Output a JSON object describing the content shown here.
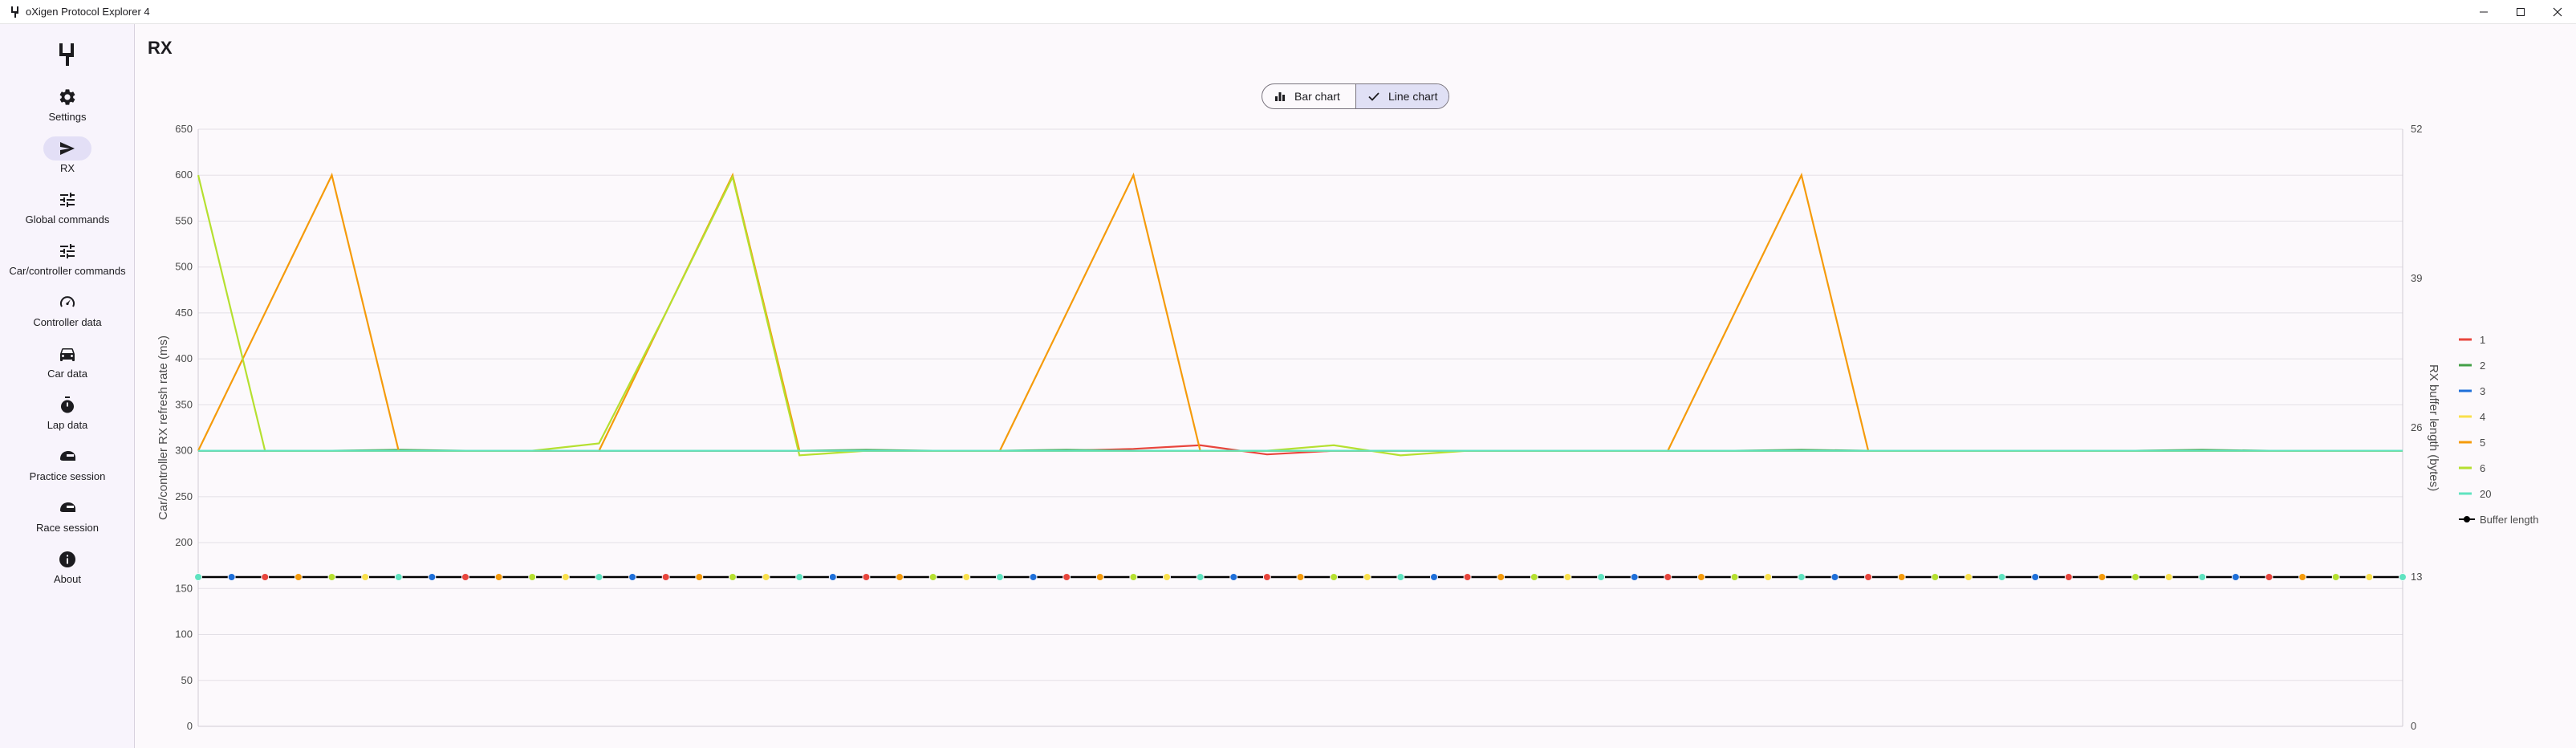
{
  "window": {
    "title": "oXigen Protocol Explorer 4"
  },
  "nav": {
    "items": [
      {
        "label": "Settings",
        "icon": "gear-icon",
        "active": false
      },
      {
        "label": "RX",
        "icon": "send-icon",
        "active": true
      },
      {
        "label": "Global commands",
        "icon": "tune-icon",
        "active": false
      },
      {
        "label": "Car/controller commands",
        "icon": "tune-icon",
        "active": false
      },
      {
        "label": "Controller data",
        "icon": "speedometer-icon",
        "active": false
      },
      {
        "label": "Car data",
        "icon": "car-icon",
        "active": false
      },
      {
        "label": "Lap data",
        "icon": "stopwatch-icon",
        "active": false
      },
      {
        "label": "Practice session",
        "icon": "helmet-icon",
        "active": false
      },
      {
        "label": "Race session",
        "icon": "helmet-icon",
        "active": false
      },
      {
        "label": "About",
        "icon": "info-icon",
        "active": false
      }
    ]
  },
  "page": {
    "title": "RX"
  },
  "toggle": {
    "bar_label": "Bar chart",
    "line_label": "Line chart",
    "selected": "Line chart"
  },
  "chart_data": {
    "type": "line",
    "ylabel": "Car/controller RX refresh rate (ms)",
    "y2label": "RX buffer length (bytes)",
    "ylim": [
      0,
      650
    ],
    "y_ticks": [
      0,
      50,
      100,
      150,
      200,
      250,
      300,
      350,
      400,
      450,
      500,
      550,
      600,
      650
    ],
    "y2lim": [
      0,
      52
    ],
    "y2_ticks": [
      0,
      13,
      26,
      39,
      52
    ],
    "grid": true,
    "legend_position": "right",
    "x": [
      0,
      1,
      2,
      3,
      4,
      5,
      6,
      7,
      8,
      9,
      10,
      11,
      12,
      13,
      14,
      15,
      16,
      17,
      18,
      19,
      20,
      21,
      22,
      23,
      24,
      25,
      26,
      27,
      28,
      29,
      30,
      31,
      32,
      33
    ],
    "series": [
      {
        "name": "1",
        "color": "#e8453c",
        "values": [
          300,
          300,
          300,
          300,
          300,
          300,
          300,
          300,
          300,
          300,
          300,
          300,
          300,
          300,
          302,
          306,
          296,
          300,
          300,
          300,
          300,
          300,
          300,
          300,
          300,
          300,
          300,
          300,
          300,
          300,
          300,
          300,
          300,
          300
        ]
      },
      {
        "name": "2",
        "color": "#43a047",
        "values": [
          300,
          300,
          300,
          301,
          300,
          300,
          300,
          300,
          300,
          300,
          301,
          300,
          300,
          301,
          300,
          300,
          300,
          300,
          300,
          300,
          300,
          300,
          300,
          300,
          301,
          300,
          300,
          300,
          300,
          300,
          301,
          300,
          300,
          300
        ]
      },
      {
        "name": "3",
        "color": "#1e6fd9",
        "values": [
          300,
          300,
          300,
          300,
          300,
          300,
          300,
          300,
          300,
          300,
          300,
          300,
          300,
          300,
          300,
          300,
          300,
          300,
          300,
          300,
          300,
          300,
          300,
          300,
          300,
          300,
          300,
          300,
          300,
          300,
          300,
          300,
          300,
          300
        ]
      },
      {
        "name": "4",
        "color": "#f9e04b",
        "values": [
          300,
          300,
          300,
          300,
          300,
          300,
          300,
          300,
          300,
          300,
          300,
          300,
          300,
          300,
          300,
          300,
          300,
          300,
          300,
          300,
          300,
          300,
          300,
          300,
          300,
          300,
          300,
          300,
          300,
          300,
          300,
          300,
          300,
          300
        ]
      },
      {
        "name": "5",
        "color": "#f59b0b",
        "values": [
          300,
          450,
          600,
          300,
          300,
          300,
          300,
          450,
          600,
          300,
          300,
          300,
          300,
          450,
          600,
          300,
          300,
          300,
          300,
          300,
          300,
          300,
          300,
          450,
          600,
          300,
          300,
          300,
          300,
          300,
          300,
          300,
          300,
          300
        ]
      },
      {
        "name": "6",
        "color": "#b5e030",
        "values": [
          600,
          300,
          300,
          300,
          300,
          300,
          308,
          450,
          598,
          295,
          300,
          300,
          300,
          300,
          300,
          300,
          300,
          306,
          295,
          300,
          300,
          300,
          300,
          300,
          300,
          300,
          300,
          300,
          300,
          300,
          300,
          300,
          300,
          300
        ]
      },
      {
        "name": "20",
        "color": "#5fe3c0",
        "values": [
          300,
          300,
          300,
          300,
          300,
          300,
          300,
          300,
          300,
          300,
          300,
          300,
          300,
          300,
          300,
          300,
          300,
          300,
          300,
          300,
          300,
          300,
          300,
          300,
          300,
          300,
          300,
          300,
          300,
          300,
          300,
          300,
          300,
          300
        ]
      },
      {
        "name": "Buffer length",
        "color": "#000000",
        "axis": "right",
        "values": [
          13,
          13,
          13,
          13,
          13,
          13,
          13,
          13,
          13,
          13,
          13,
          13,
          13,
          13,
          13,
          13,
          13,
          13,
          13,
          13,
          13,
          13,
          13,
          13,
          13,
          13,
          13,
          13,
          13,
          13,
          13,
          13,
          13,
          13
        ]
      }
    ]
  }
}
